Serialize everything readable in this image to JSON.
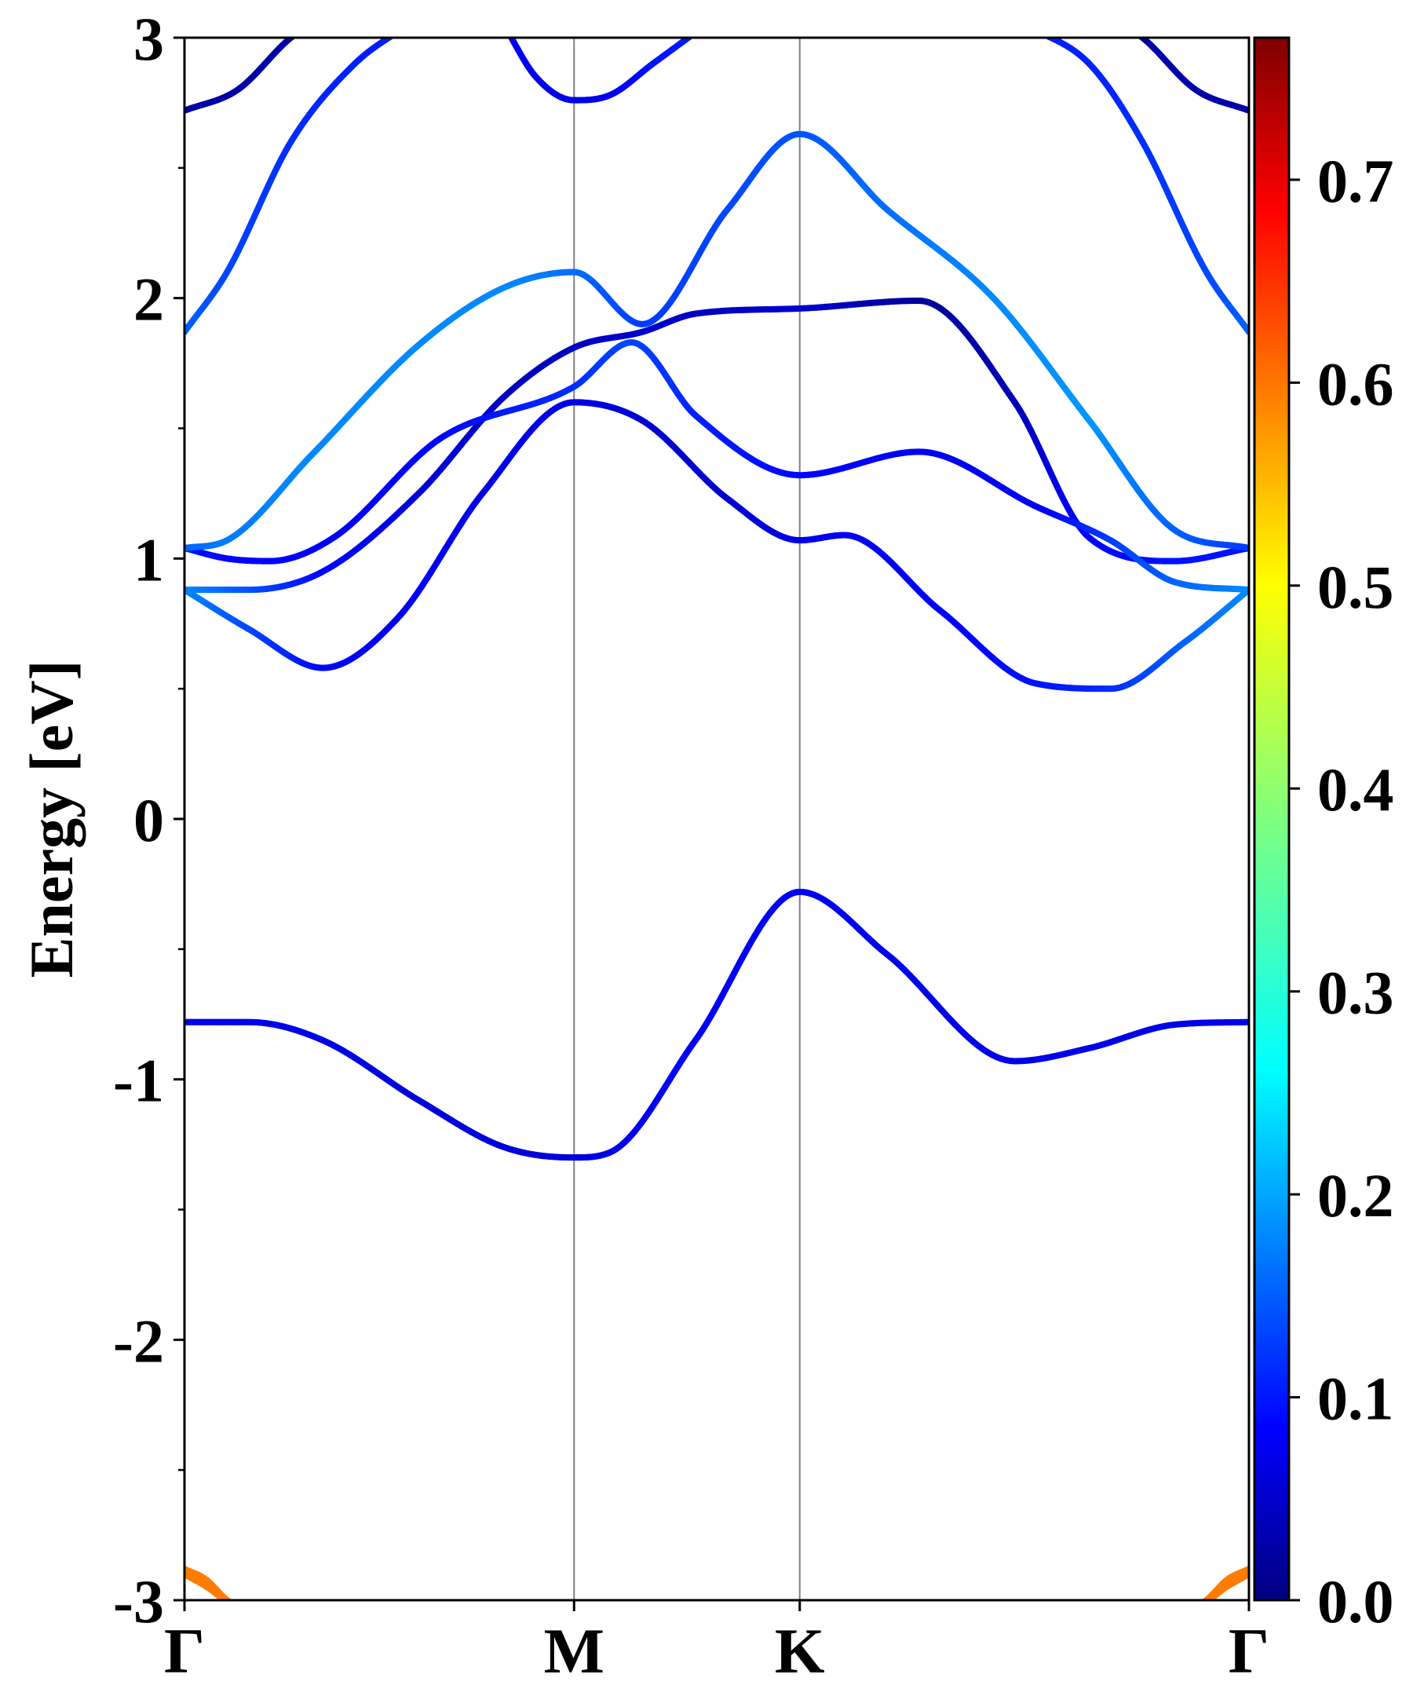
{
  "chart_data": {
    "type": "line",
    "title": "",
    "xlabel": "",
    "ylabel": "Energy [eV]",
    "xlim": [
      0,
      1
    ],
    "ylim": [
      -3,
      3
    ],
    "y_ticks": [
      -3,
      -2,
      -1,
      0,
      1,
      2,
      3
    ],
    "y_tick_labels": [
      "-3",
      "-2",
      "-1",
      "0",
      "1",
      "2",
      "3"
    ],
    "y_minor_ticks": [
      -2.5,
      -1.5,
      -0.5,
      0.5,
      1.5,
      2.5
    ],
    "high_symmetry_points": [
      {
        "label": "Γ",
        "x": 0.0
      },
      {
        "label": "M",
        "x": 0.366
      },
      {
        "label": "K",
        "x": 0.578
      },
      {
        "label": "Γ",
        "x": 1.0
      }
    ],
    "grid": false,
    "colorbar": {
      "colormap": "jet",
      "range": [
        0.0,
        0.77
      ],
      "ticks": [
        0.0,
        0.1,
        0.2,
        0.3,
        0.4,
        0.5,
        0.6,
        0.7
      ],
      "tick_labels": [
        "0.0",
        "0.1",
        "0.2",
        "0.3",
        "0.4",
        "0.5",
        "0.6",
        "0.7"
      ]
    },
    "series": [
      {
        "x": [
          0,
          0.06,
          0.13,
          0.22,
          0.3,
          0.366,
          0.4,
          0.48,
          0.578,
          0.66,
          0.78,
          0.85,
          0.93,
          1.0
        ],
        "y": [
          -0.78,
          -0.78,
          -0.85,
          -1.08,
          -1.26,
          -1.3,
          -1.28,
          -0.85,
          -0.28,
          -0.52,
          -0.93,
          -0.88,
          -0.79,
          -0.78
        ],
        "c": [
          0.08,
          0.08,
          0.08,
          0.07,
          0.07,
          0.07,
          0.08,
          0.09,
          0.09,
          0.08,
          0.08,
          0.08,
          0.08,
          0.08
        ]
      },
      {
        "x": [
          0,
          0.06,
          0.13,
          0.2,
          0.28,
          0.366,
          0.43,
          0.51,
          0.578,
          0.62,
          0.71,
          0.8,
          0.87,
          0.94,
          1.0
        ],
        "y": [
          0.88,
          0.73,
          0.58,
          0.77,
          1.25,
          1.6,
          1.53,
          1.23,
          1.07,
          1.09,
          0.8,
          0.52,
          0.5,
          0.68,
          0.88
        ],
        "c": [
          0.2,
          0.15,
          0.1,
          0.09,
          0.08,
          0.08,
          0.06,
          0.06,
          0.08,
          0.09,
          0.09,
          0.11,
          0.13,
          0.17,
          0.2
        ]
      },
      {
        "x": [
          0,
          0.06,
          0.13,
          0.22,
          0.3,
          0.366,
          0.43,
          0.48,
          0.578,
          0.69,
          0.78,
          0.85,
          0.93,
          1.0
        ],
        "y": [
          0.88,
          0.88,
          0.95,
          1.25,
          1.62,
          1.81,
          1.87,
          1.94,
          1.96,
          1.99,
          1.6,
          1.08,
          0.99,
          1.04
        ],
        "c": [
          0.2,
          0.16,
          0.1,
          0.07,
          0.05,
          0.05,
          0.06,
          0.05,
          0.06,
          0.02,
          0.04,
          0.1,
          0.11,
          0.11
        ]
      },
      {
        "x": [
          0,
          0.04,
          0.08,
          0.14,
          0.24,
          0.366,
          0.42,
          0.48,
          0.578,
          0.69,
          0.8,
          0.87,
          0.93,
          1.0
        ],
        "y": [
          1.04,
          1.0,
          0.99,
          1.08,
          1.46,
          1.66,
          1.83,
          1.55,
          1.32,
          1.41,
          1.2,
          1.07,
          0.91,
          0.88
        ],
        "c": [
          0.11,
          0.1,
          0.1,
          0.09,
          0.1,
          0.13,
          0.15,
          0.12,
          0.1,
          0.09,
          0.09,
          0.14,
          0.17,
          0.2
        ]
      },
      {
        "x": [
          0,
          0.04,
          0.12,
          0.22,
          0.3,
          0.366,
          0.43,
          0.51,
          0.578,
          0.66,
          0.76,
          0.85,
          0.93,
          1.0
        ],
        "y": [
          1.04,
          1.07,
          1.4,
          1.82,
          2.04,
          2.1,
          1.9,
          2.34,
          2.63,
          2.34,
          2.0,
          1.53,
          1.11,
          1.04
        ],
        "c": [
          0.17,
          0.19,
          0.2,
          0.2,
          0.2,
          0.18,
          0.14,
          0.15,
          0.16,
          0.18,
          0.2,
          0.21,
          0.17,
          0.14
        ]
      },
      {
        "x": [
          0,
          0.04,
          0.1,
          0.16,
          0.21
        ],
        "y": [
          1.87,
          2.1,
          2.6,
          2.9,
          3.05
        ],
        "c": [
          0.17,
          0.15,
          0.13,
          0.12,
          0.12
        ]
      },
      {
        "x": [
          0.79,
          0.85,
          0.9,
          0.96,
          1.0
        ],
        "y": [
          3.05,
          2.9,
          2.6,
          2.1,
          1.87
        ],
        "c": [
          0.12,
          0.12,
          0.13,
          0.15,
          0.17
        ]
      },
      {
        "x": [
          0,
          0.05,
          0.1,
          0.12
        ],
        "y": [
          2.72,
          2.8,
          3.0,
          3.05
        ],
        "c": [
          0.03,
          0.03,
          0.03,
          0.03
        ]
      },
      {
        "x": [
          0.88,
          0.9,
          0.95,
          1.0
        ],
        "y": [
          3.05,
          3.0,
          2.8,
          2.72
        ],
        "c": [
          0.03,
          0.03,
          0.03,
          0.03
        ]
      },
      {
        "x": [
          0.3,
          0.33,
          0.366,
          0.4,
          0.44,
          0.49
        ],
        "y": [
          3.05,
          2.85,
          2.76,
          2.78,
          2.9,
          3.05
        ],
        "c": [
          0.1,
          0.08,
          0.08,
          0.09,
          0.11,
          0.12
        ]
      },
      {
        "x": [
          0,
          0.02,
          0.04,
          0.06
        ],
        "y": [
          -2.88,
          -2.92,
          -3.0,
          -3.05
        ],
        "c": [
          0.58,
          0.58,
          0.58,
          0.58
        ]
      },
      {
        "x": [
          0,
          0.025,
          0.05
        ],
        "y": [
          -2.9,
          -2.96,
          -3.05
        ],
        "c": [
          0.58,
          0.58,
          0.58
        ]
      },
      {
        "x": [
          0.94,
          0.96,
          0.98,
          1.0
        ],
        "y": [
          -3.05,
          -3.0,
          -2.92,
          -2.88
        ],
        "c": [
          0.58,
          0.58,
          0.58,
          0.58
        ]
      },
      {
        "x": [
          0.95,
          0.975,
          1.0
        ],
        "y": [
          -3.05,
          -2.96,
          -2.9
        ],
        "c": [
          0.58,
          0.58,
          0.58
        ]
      }
    ]
  }
}
